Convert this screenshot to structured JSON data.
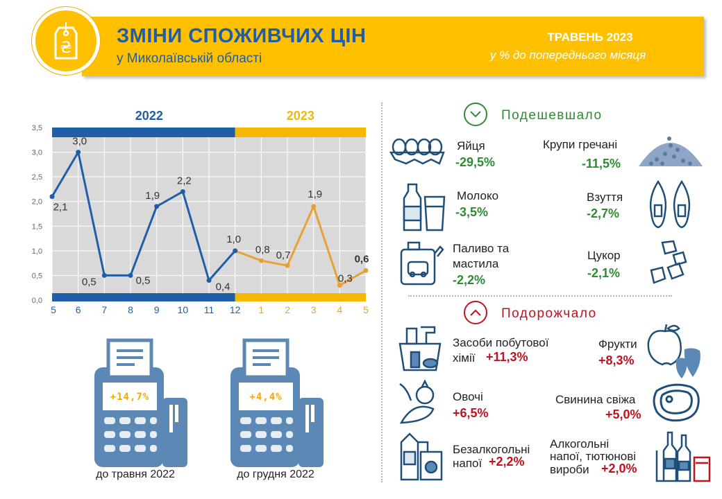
{
  "header": {
    "title": "ЗМІНИ СПОЖИВЧИХ ЦІН",
    "subtitle": "у Миколаївській області",
    "period": "ТРАВЕНЬ 2023",
    "period_note": "у % до попереднього місяця",
    "logo_icon": "price-tag-hryvnia-icon",
    "colors": {
      "accent": "#ffc000",
      "title": "#1f5da8"
    }
  },
  "chart_data": {
    "type": "line",
    "year_labels": [
      "2022",
      "2023"
    ],
    "categories": [
      "5",
      "6",
      "7",
      "8",
      "9",
      "10",
      "11",
      "12",
      "1",
      "2",
      "3",
      "4",
      "5"
    ],
    "series": [
      {
        "values": [
          2.1,
          3.0,
          0.5,
          0.5,
          1.9,
          2.2,
          0.4,
          1.0,
          0.8,
          0.7,
          1.9,
          0.3,
          0.6
        ]
      }
    ],
    "data_labels": [
      "2,1",
      "3,0",
      "0,5",
      "0,5",
      "1,9",
      "2,2",
      "0,4",
      "1,0",
      "0,8",
      "0,7",
      "1,9",
      "0,3",
      "0,6"
    ],
    "y_ticks": [
      "0,0",
      "0,5",
      "1,0",
      "1,5",
      "2,0",
      "2,5",
      "3,0",
      "3,5"
    ],
    "ylim": [
      0,
      3.5
    ],
    "grid": true,
    "colors": {
      "2022": "#1f5da8",
      "2023": "#e8a135",
      "year_2023_text": "#f5b800",
      "plot_bg": "#d9d9d9"
    }
  },
  "receipts": [
    {
      "value": "+14,7%",
      "caption": "до травня 2022"
    },
    {
      "value": "+4,4%",
      "caption": "до грудня 2022"
    }
  ],
  "cheaper": {
    "heading": "Подешевшало",
    "icon": "chevron-down-icon",
    "items": [
      {
        "name": "Яйця",
        "value": "-29,5%",
        "icon": "eggs-icon"
      },
      {
        "name": "Крупи гречані",
        "value": "-11,5%",
        "icon": "buckwheat-icon"
      },
      {
        "name": "Молоко",
        "value": "-3,5%",
        "icon": "milk-icon"
      },
      {
        "name": "Взуття",
        "value": "-2,7%",
        "icon": "shoes-icon"
      },
      {
        "name_line1": "Паливо та",
        "name_line2": "мастила",
        "value": "-2,2%",
        "icon": "fuel-canister-icon"
      },
      {
        "name": "Цукор",
        "value": "-2,1%",
        "icon": "sugar-cubes-icon"
      }
    ]
  },
  "pricier": {
    "heading": "Подорожчало",
    "icon": "chevron-up-icon",
    "items": [
      {
        "name_line1": "Засоби побутової",
        "name_line2": "хімії",
        "value": "+11,3%",
        "icon": "household-chemicals-icon"
      },
      {
        "name": "Фрукти",
        "value": "+8,3%",
        "icon": "fruits-icon"
      },
      {
        "name": "Овочі",
        "value": "+6,5%",
        "icon": "vegetables-icon"
      },
      {
        "name": "Свинина свіжа",
        "value": "+5,0%",
        "icon": "pork-icon"
      },
      {
        "name_line1": "Безалкогольні",
        "name_line2": "напої",
        "value": "+2,2%",
        "icon": "soft-drinks-icon"
      },
      {
        "name_line1": "Алкогольні",
        "name_line2": "напої, тютюнові",
        "name_line3": "вироби",
        "value": "+2,0%",
        "icon": "alcohol-tobacco-icon"
      }
    ]
  }
}
